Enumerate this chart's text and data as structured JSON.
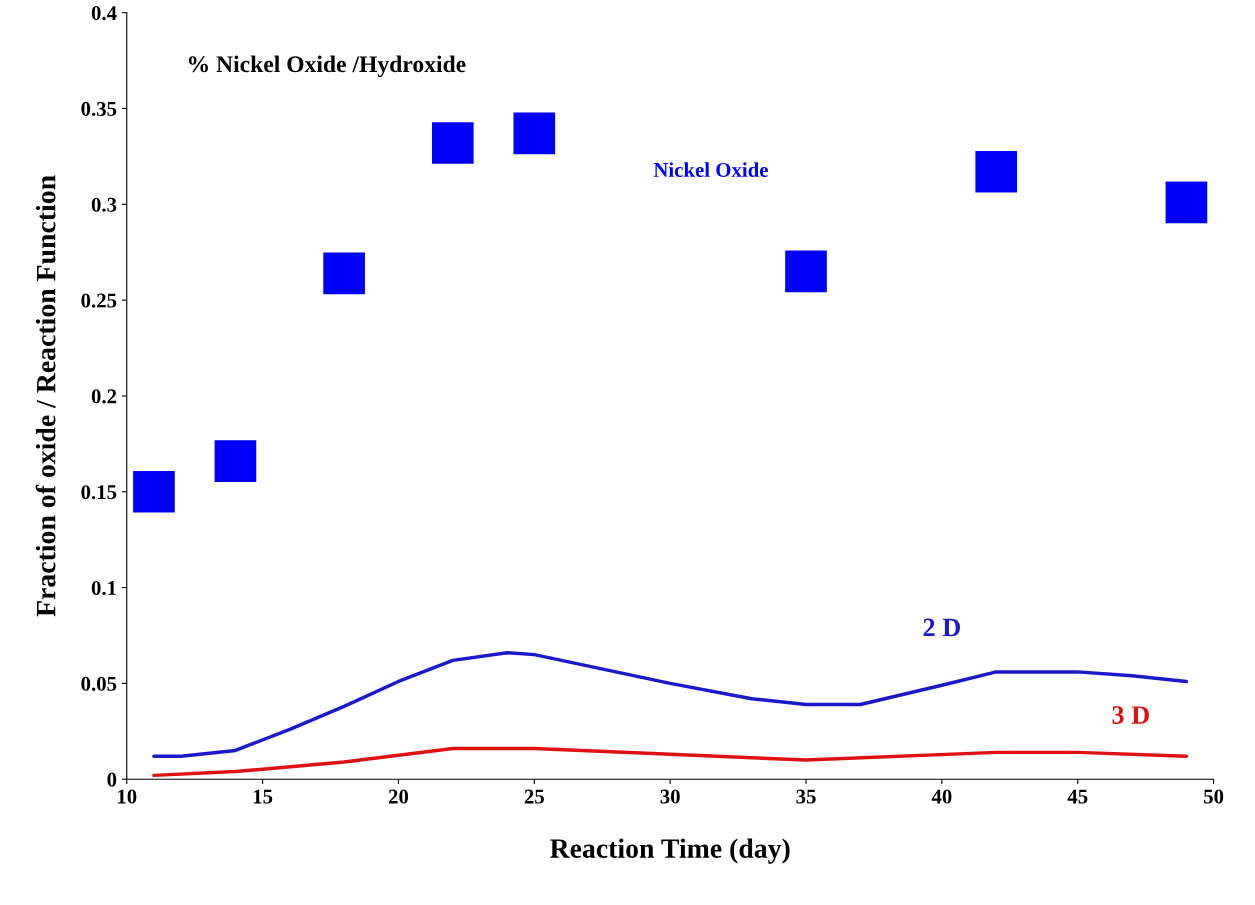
{
  "chart_data": {
    "type": "scatter",
    "title": "% Nickel Oxide /Hydroxide",
    "xlabel": "Reaction Time (day)",
    "ylabel": "Fraction of oxide / Reaction Function",
    "xlim": [
      10,
      50
    ],
    "xticks": [
      10,
      15,
      20,
      25,
      30,
      35,
      40,
      45,
      50
    ],
    "ylim": [
      0,
      0.4
    ],
    "yticks": [
      0,
      0.05,
      0.1,
      0.15,
      0.2,
      0.25,
      0.3,
      0.35,
      0.4
    ],
    "grid": false,
    "legend": false,
    "series": [
      {
        "name": "Nickel Oxide",
        "marker": "square",
        "color": "#0000ff",
        "x": [
          11,
          14,
          18,
          22,
          25,
          35,
          42,
          49
        ],
        "values": [
          0.15,
          0.166,
          0.264,
          0.332,
          0.337,
          0.265,
          0.317,
          0.301
        ]
      },
      {
        "name": "2 D",
        "type": "line",
        "marker": "none",
        "color": "#1a1acc",
        "x": [
          11,
          12,
          14,
          16,
          18,
          20,
          22,
          24,
          25,
          28,
          30,
          33,
          35,
          37,
          40,
          42,
          45,
          47,
          49
        ],
        "values": [
          0.012,
          0.012,
          0.015,
          0.026,
          0.038,
          0.051,
          0.062,
          0.066,
          0.065,
          0.056,
          0.05,
          0.042,
          0.039,
          0.039,
          0.049,
          0.056,
          0.056,
          0.054,
          0.051
        ]
      },
      {
        "name": "3 D",
        "type": "line",
        "marker": "none",
        "color": "#dd1111",
        "x": [
          11,
          14,
          18,
          22,
          25,
          30,
          35,
          42,
          45,
          49
        ],
        "values": [
          0.002,
          0.004,
          0.009,
          0.016,
          0.016,
          0.013,
          0.01,
          0.014,
          0.014,
          0.012
        ]
      }
    ]
  }
}
